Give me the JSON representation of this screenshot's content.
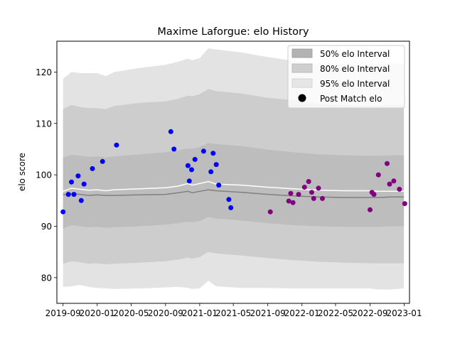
{
  "chart_data": {
    "type": "scatter",
    "title": "Maxime Laforgue: elo History",
    "xlabel": "",
    "ylabel": "elo score",
    "xlim": [
      "2019-08-10",
      "2023-01-20"
    ],
    "ylim": [
      75,
      126
    ],
    "x_ticks": [
      "2019-09",
      "2020-01",
      "2020-05",
      "2020-09",
      "2021-01",
      "2021-05",
      "2021-09",
      "2022-01",
      "2022-05",
      "2022-09",
      "2023-01"
    ],
    "y_ticks": [
      80,
      90,
      100,
      110,
      120
    ],
    "grid": false,
    "legend": {
      "placement": "top-right",
      "entries": [
        "50% elo Interval",
        "80% elo Interval",
        "95% elo Interval",
        "Post Match elo"
      ]
    },
    "colors": {
      "band_95": "#e3e3e3",
      "band_80": "#cdcdcd",
      "band_50": "#bdbdbd",
      "mean_line": "#808080",
      "median_line": "#ffffff",
      "points_early": "#0000ff",
      "points_late": "#800080"
    },
    "bands": {
      "x": [
        "2019-09-01",
        "2019-10-01",
        "2019-11-01",
        "2019-12-01",
        "2020-01-01",
        "2020-02-01",
        "2020-03-01",
        "2020-06-01",
        "2020-09-01",
        "2020-10-15",
        "2020-11-20",
        "2020-12-05",
        "2021-01-01",
        "2021-02-01",
        "2021-03-01",
        "2021-06-01",
        "2021-09-01",
        "2021-12-01",
        "2022-03-01",
        "2022-06-01",
        "2022-09-01",
        "2022-10-01",
        "2022-11-15",
        "2022-12-31"
      ],
      "p975": [
        118.7,
        120.0,
        119.8,
        119.8,
        119.8,
        119.2,
        120.0,
        120.8,
        121.4,
        122.0,
        122.6,
        122.3,
        122.7,
        124.6,
        124.4,
        123.8,
        122.9,
        122.2,
        121.5,
        121.4,
        121.4,
        121.4,
        121.6,
        121.6
      ],
      "p90": [
        112.8,
        113.6,
        113.2,
        113.0,
        113.0,
        112.8,
        113.4,
        114.0,
        114.3,
        114.8,
        115.4,
        115.3,
        115.7,
        116.7,
        116.3,
        115.8,
        115.0,
        114.5,
        113.8,
        113.5,
        113.4,
        113.4,
        113.6,
        113.6
      ],
      "p75": [
        103.4,
        103.9,
        103.7,
        103.5,
        103.6,
        103.4,
        103.6,
        104.0,
        104.4,
        104.8,
        105.1,
        105.1,
        105.4,
        106.2,
        106.0,
        105.6,
        104.9,
        104.4,
        104.0,
        103.8,
        103.7,
        103.7,
        103.8,
        103.8
      ],
      "median": [
        96.8,
        97.4,
        97.2,
        97.0,
        97.1,
        96.9,
        97.1,
        97.3,
        97.5,
        97.8,
        98.3,
        98.0,
        98.3,
        98.7,
        98.2,
        98.0,
        97.6,
        97.3,
        97.0,
        96.9,
        96.9,
        96.8,
        96.8,
        96.8
      ],
      "mean": [
        96.1,
        96.3,
        96.2,
        96.0,
        96.1,
        96.0,
        96.0,
        96.1,
        96.2,
        96.5,
        96.8,
        96.5,
        96.8,
        97.1,
        96.9,
        96.6,
        96.2,
        95.9,
        95.7,
        95.6,
        95.6,
        95.6,
        95.7,
        95.7
      ],
      "p25": [
        89.6,
        90.2,
        90.0,
        89.8,
        89.9,
        89.7,
        89.8,
        90.0,
        90.3,
        90.6,
        90.9,
        90.8,
        91.0,
        91.8,
        91.5,
        91.1,
        90.6,
        90.2,
        90.0,
        89.9,
        89.9,
        89.9,
        90.0,
        90.0
      ],
      "p10": [
        82.7,
        83.2,
        83.0,
        82.7,
        82.8,
        82.6,
        82.7,
        82.9,
        83.2,
        83.5,
        83.9,
        83.7,
        84.0,
        85.0,
        84.7,
        84.3,
        83.8,
        83.4,
        83.1,
        82.9,
        82.8,
        82.8,
        82.8,
        82.8
      ],
      "p025": [
        78.2,
        78.3,
        78.6,
        78.2,
        78.0,
        77.9,
        77.8,
        77.9,
        78.1,
        78.2,
        78.0,
        77.8,
        77.9,
        79.4,
        78.3,
        78.0,
        78.0,
        77.9,
        77.9,
        77.9,
        77.9,
        77.7,
        77.7,
        77.9
      ]
    },
    "series": [
      {
        "color": "#0000ff",
        "points": [
          {
            "x": "2019-09-01",
            "y": 92.8
          },
          {
            "x": "2019-09-20",
            "y": 96.2
          },
          {
            "x": "2019-10-01",
            "y": 98.6
          },
          {
            "x": "2019-10-10",
            "y": 96.2
          },
          {
            "x": "2019-10-25",
            "y": 99.8
          },
          {
            "x": "2019-11-05",
            "y": 95.0
          },
          {
            "x": "2019-11-15",
            "y": 98.2
          },
          {
            "x": "2019-12-15",
            "y": 101.2
          },
          {
            "x": "2020-01-20",
            "y": 102.6
          },
          {
            "x": "2020-03-10",
            "y": 105.8
          },
          {
            "x": "2020-09-20",
            "y": 108.4
          },
          {
            "x": "2020-10-01",
            "y": 105.0
          },
          {
            "x": "2020-11-20",
            "y": 101.8
          },
          {
            "x": "2020-11-25",
            "y": 98.8
          },
          {
            "x": "2020-12-03",
            "y": 101.0
          },
          {
            "x": "2020-12-15",
            "y": 103.0
          },
          {
            "x": "2021-01-15",
            "y": 104.6
          },
          {
            "x": "2021-02-10",
            "y": 100.6
          },
          {
            "x": "2021-02-18",
            "y": 104.2
          },
          {
            "x": "2021-03-01",
            "y": 102.0
          },
          {
            "x": "2021-03-10",
            "y": 98.0
          },
          {
            "x": "2021-04-15",
            "y": 95.2
          },
          {
            "x": "2021-04-22",
            "y": 93.6
          }
        ]
      },
      {
        "color": "#800080",
        "points": [
          {
            "x": "2021-09-10",
            "y": 92.8
          },
          {
            "x": "2021-11-15",
            "y": 94.9
          },
          {
            "x": "2021-11-22",
            "y": 96.4
          },
          {
            "x": "2021-11-30",
            "y": 94.6
          },
          {
            "x": "2021-12-20",
            "y": 96.2
          },
          {
            "x": "2022-01-10",
            "y": 97.6
          },
          {
            "x": "2022-01-25",
            "y": 98.7
          },
          {
            "x": "2022-02-05",
            "y": 96.6
          },
          {
            "x": "2022-02-12",
            "y": 95.4
          },
          {
            "x": "2022-03-01",
            "y": 97.4
          },
          {
            "x": "2022-03-15",
            "y": 95.4
          },
          {
            "x": "2022-09-01",
            "y": 93.2
          },
          {
            "x": "2022-09-08",
            "y": 96.6
          },
          {
            "x": "2022-09-15",
            "y": 96.2
          },
          {
            "x": "2022-10-01",
            "y": 100.0
          },
          {
            "x": "2022-11-01",
            "y": 102.2
          },
          {
            "x": "2022-11-10",
            "y": 98.2
          },
          {
            "x": "2022-11-25",
            "y": 98.8
          },
          {
            "x": "2022-12-15",
            "y": 97.2
          },
          {
            "x": "2023-01-03",
            "y": 94.4
          }
        ]
      }
    ]
  }
}
